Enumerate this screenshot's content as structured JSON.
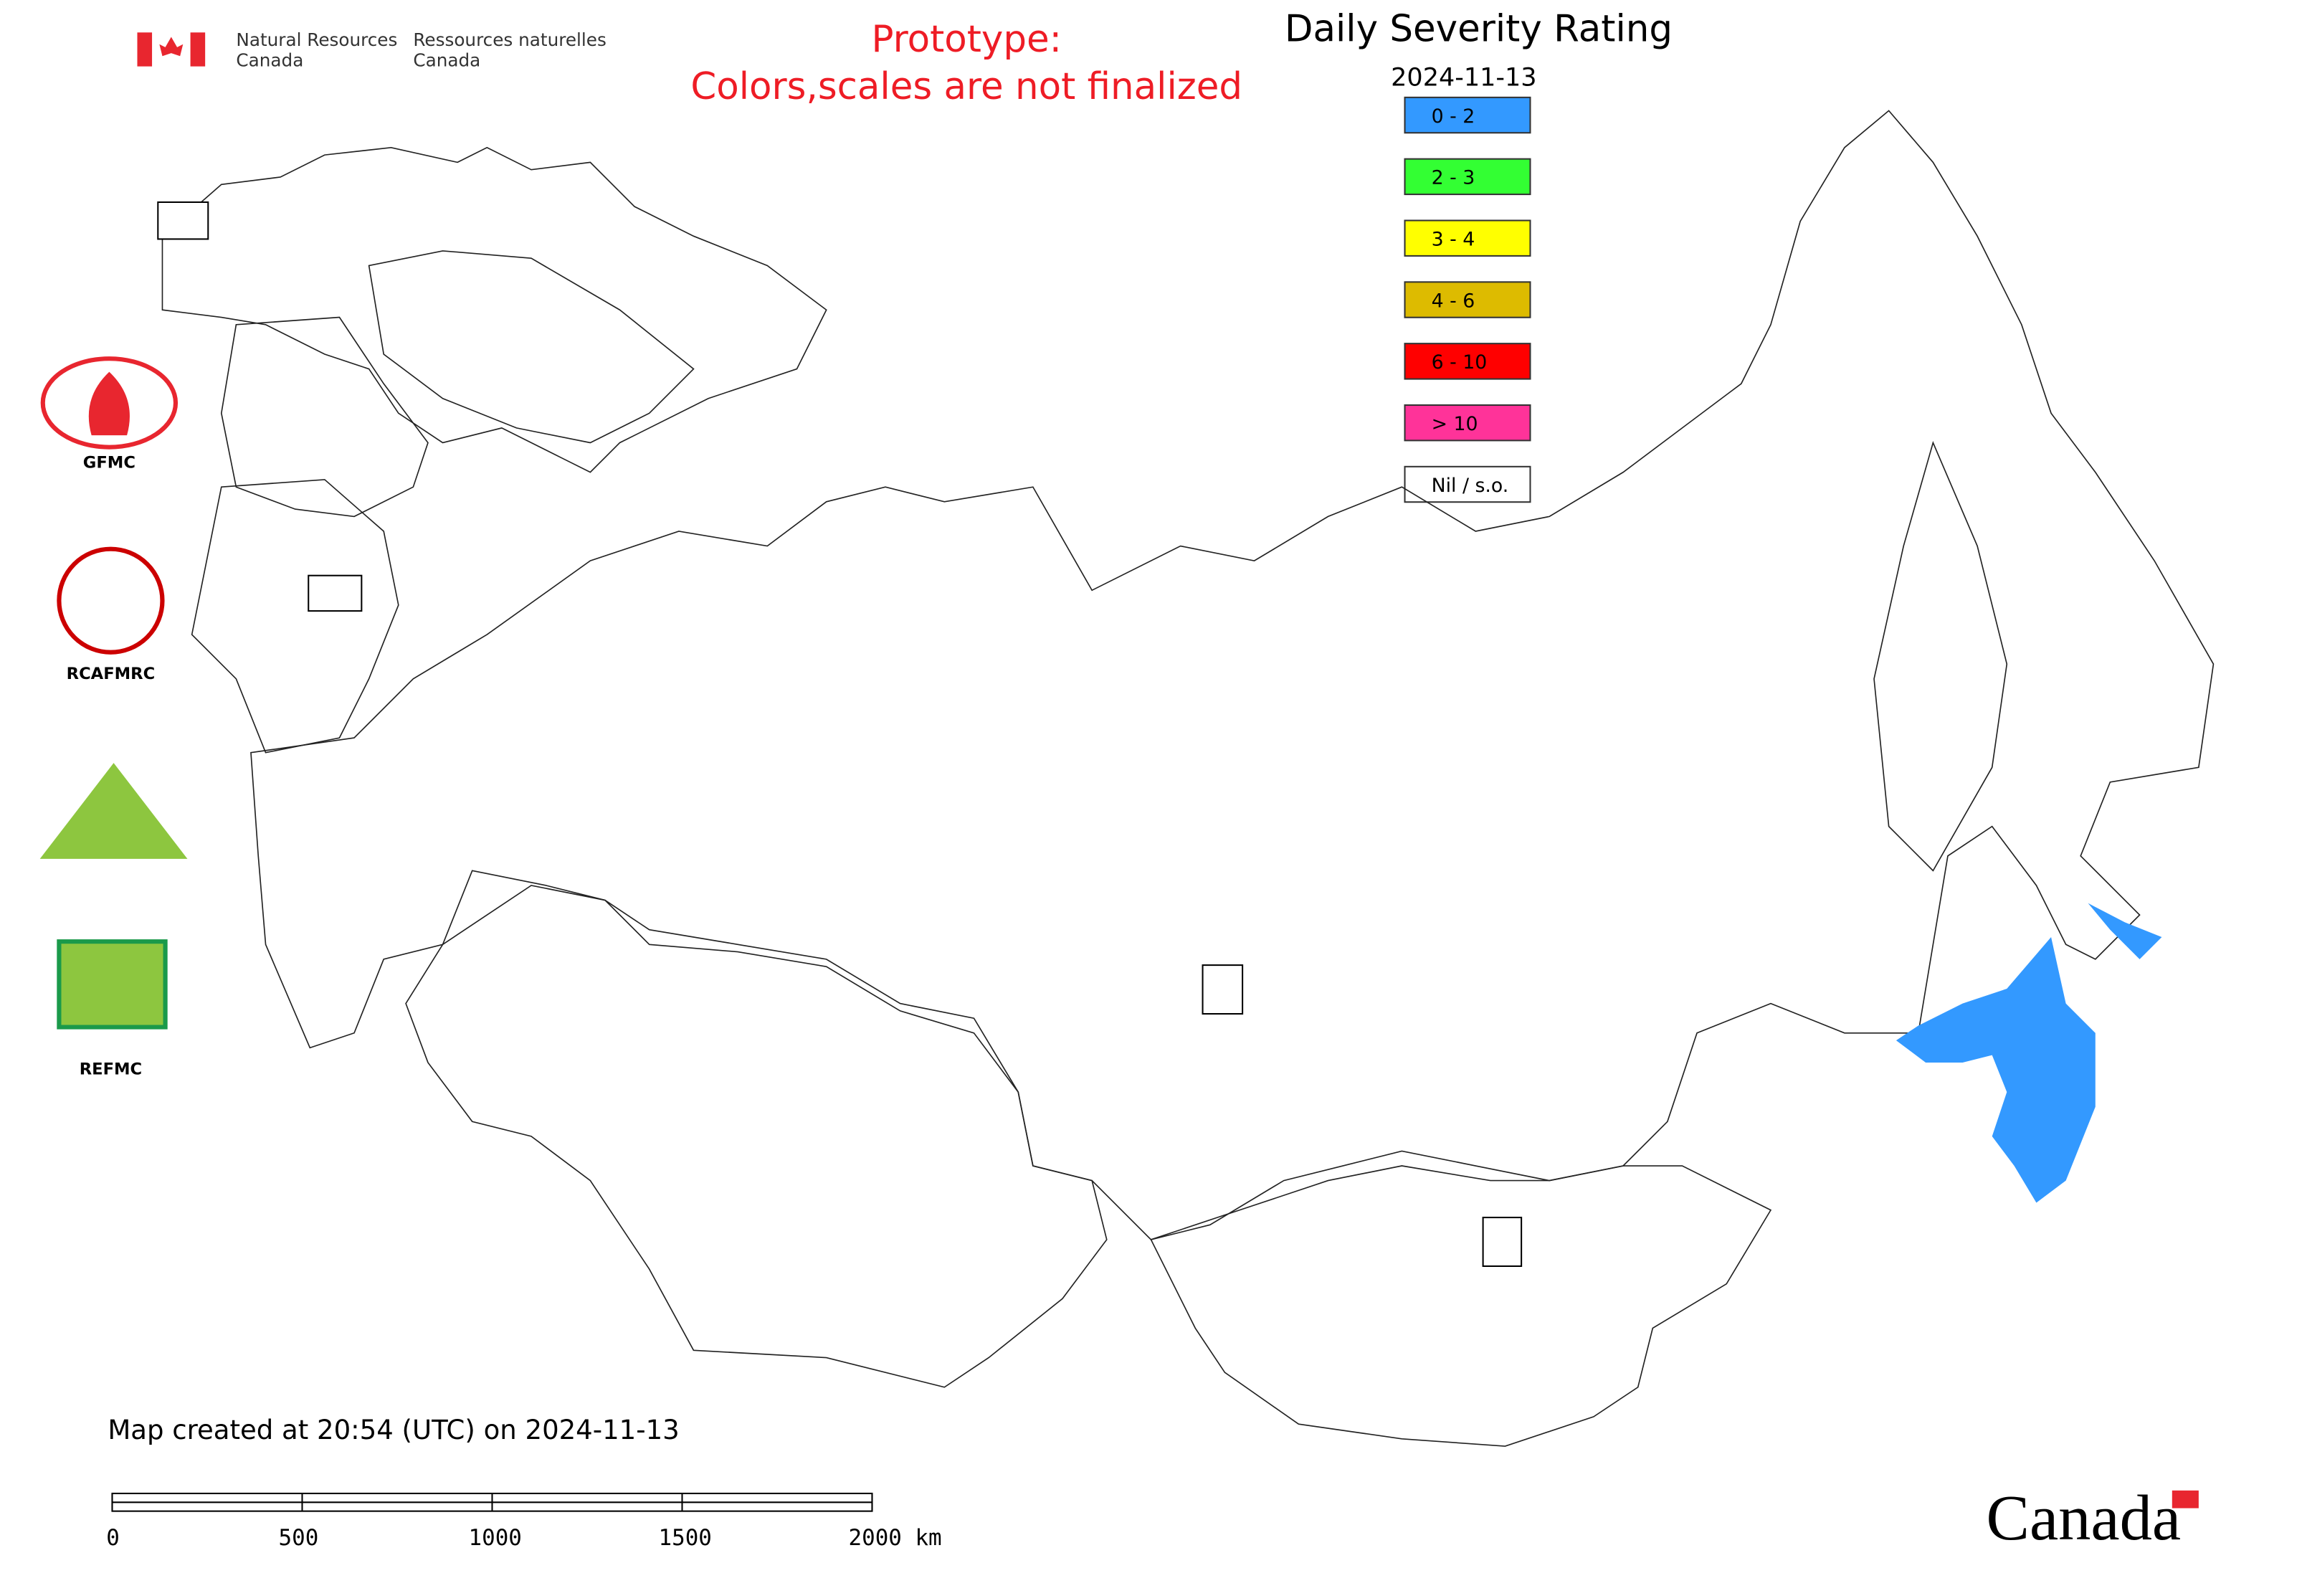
{
  "header": {
    "agency_en": [
      "Natural Resources",
      "Canada"
    ],
    "agency_fr": [
      "Ressources naturelles",
      "Canada"
    ],
    "notice": [
      "Prototype:",
      "Colors,scales are not finalized"
    ]
  },
  "legend": {
    "title": "Daily Severity Rating",
    "date": "2024-11-13",
    "items": [
      {
        "label": "0 - 2",
        "color": "#3399ff"
      },
      {
        "label": "2 - 3",
        "color": "#33ff33"
      },
      {
        "label": "3 - 4",
        "color": "#ffff00"
      },
      {
        "label": "4 - 6",
        "color": "#ddbb00"
      },
      {
        "label": "6 - 10",
        "color": "#ff0000"
      },
      {
        "label": "> 10",
        "color": "#ff3399"
      },
      {
        "label": "Nil / s.o.",
        "color": "#ffffff"
      }
    ]
  },
  "logos": [
    "GFMC",
    "RCAFMRC",
    "REFMC"
  ],
  "footer": {
    "created": "Map created at 20:54 (UTC) on 2024-11-13",
    "scale_labels": [
      "0",
      "500",
      "1000",
      "1500",
      "2000 km"
    ],
    "wordmark": "Canada"
  }
}
